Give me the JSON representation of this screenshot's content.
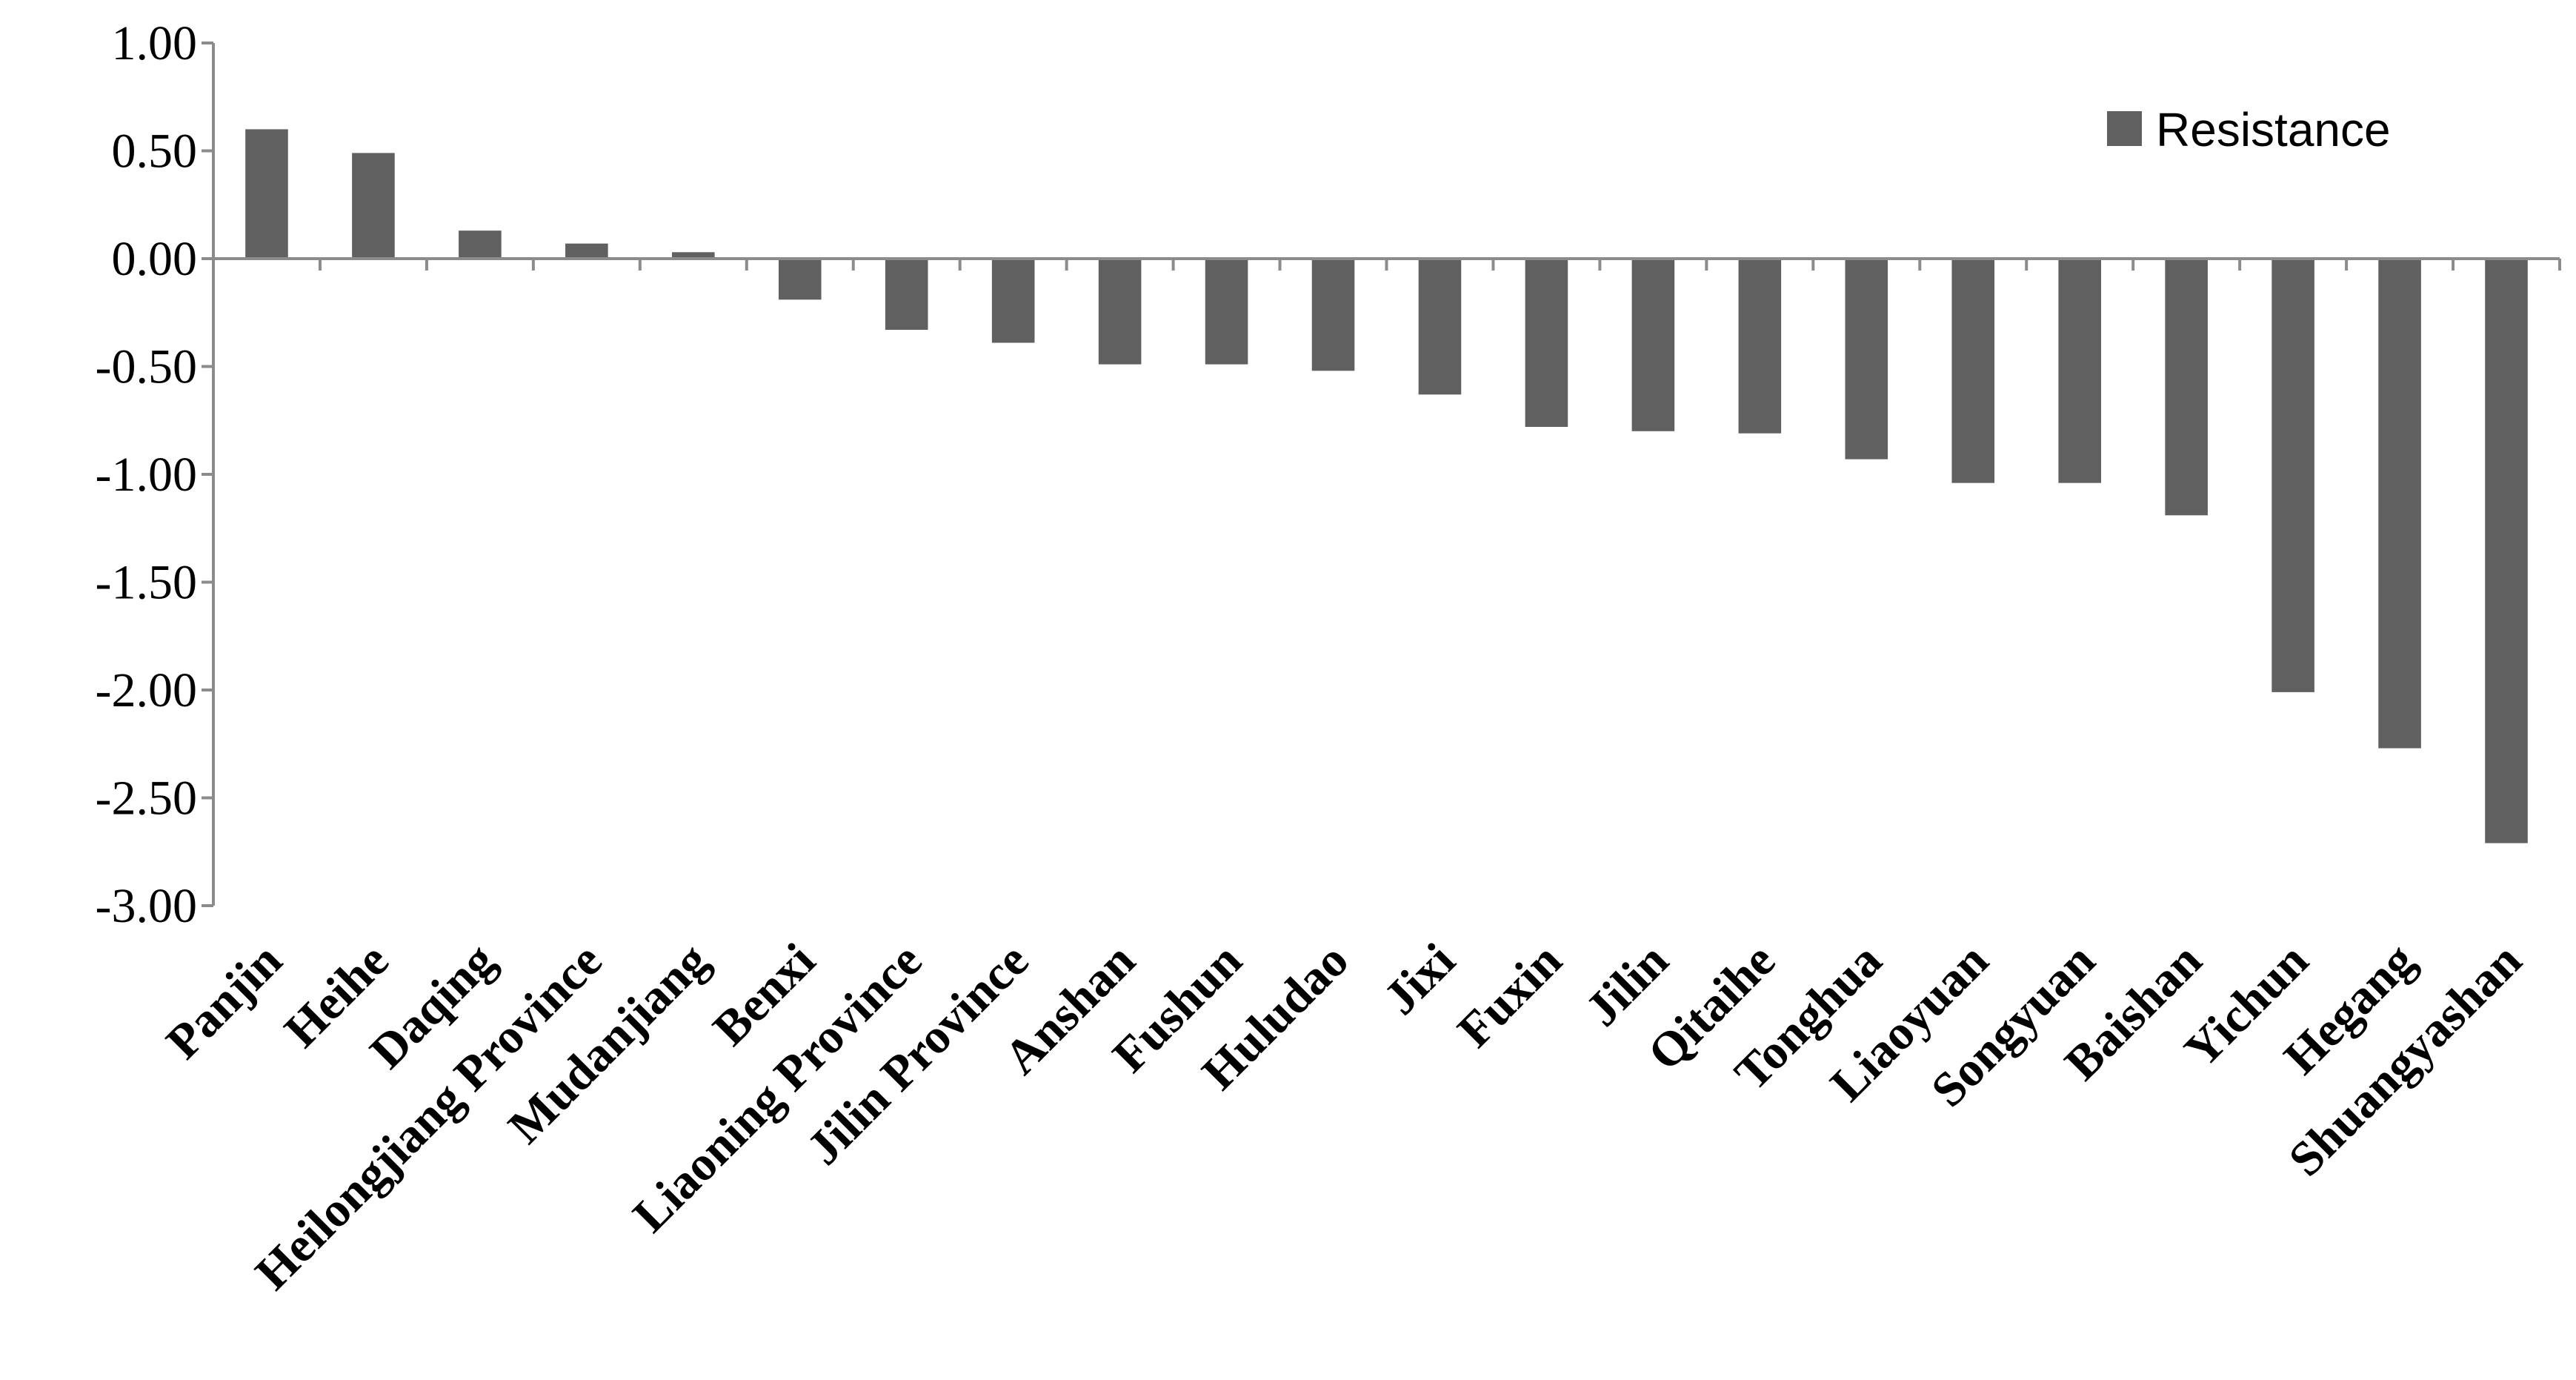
{
  "chart_data": {
    "type": "bar",
    "categories": [
      "Panjin",
      "Heihe",
      "Daqing",
      "Heilongjiang Province",
      "Mudanjiang",
      "Benxi",
      "Liaoning Province",
      "Jilin Province",
      "Anshan",
      "Fushun",
      "Huludao",
      "Jixi",
      "Fuxin",
      "Jilin",
      "Qitaihe",
      "Tonghua",
      "Liaoyuan",
      "Songyuan",
      "Baishan",
      "Yichun",
      "Hegang",
      "Shuangyashan"
    ],
    "series": [
      {
        "name": "Resistance",
        "values": [
          0.6,
          0.49,
          0.13,
          0.07,
          0.03,
          -0.19,
          -0.33,
          -0.39,
          -0.49,
          -0.49,
          -0.52,
          -0.63,
          -0.78,
          -0.8,
          -0.81,
          -0.93,
          -1.04,
          -1.04,
          -1.19,
          -2.01,
          -2.27,
          -2.71
        ]
      }
    ],
    "yticks": [
      "1.00",
      "0.50",
      "0.00",
      "-0.50",
      "-1.00",
      "-1.50",
      "-2.00",
      "-2.50",
      "-3.00"
    ],
    "ylim": [
      -3.0,
      1.0
    ],
    "grid": false,
    "legend_position": "top-right",
    "bar_color": "#606060",
    "title": "",
    "xlabel": "",
    "ylabel": ""
  }
}
